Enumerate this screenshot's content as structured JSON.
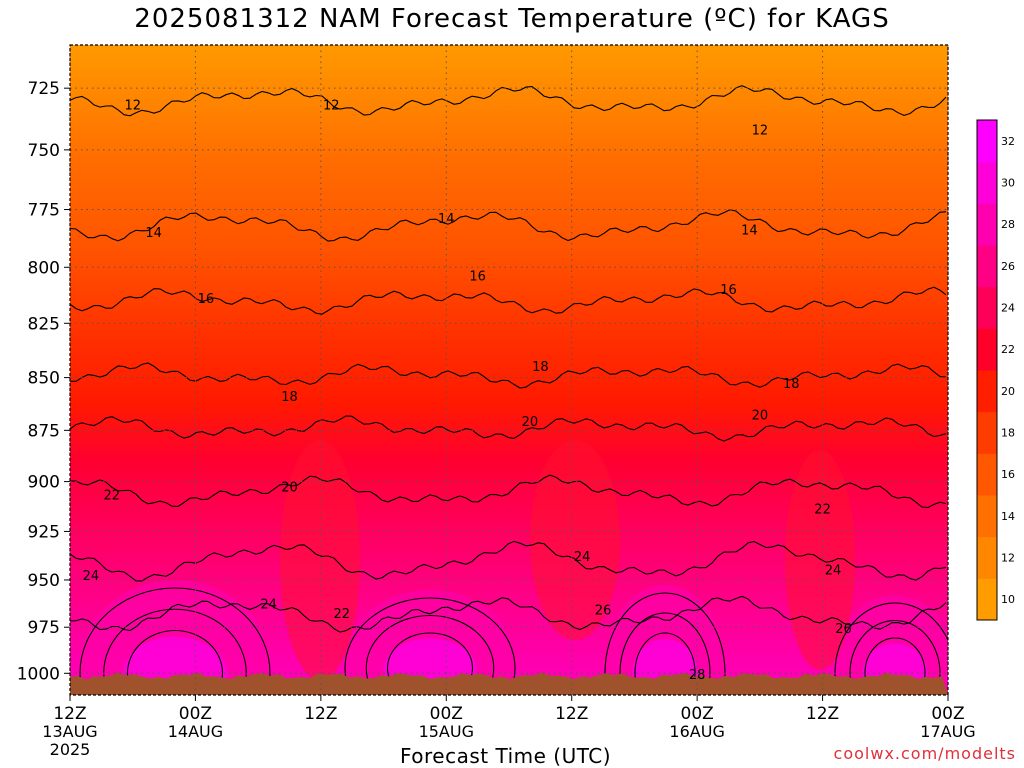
{
  "title": "2025081312 NAM Forecast Temperature (ºC) for KAGS",
  "xlabel": "Forecast Time (UTC)",
  "credit": "coolwx.com/modelts",
  "chart_data": {
    "type": "heatmap",
    "x_ticks": [
      {
        "line1": "12Z",
        "line2": "13AUG",
        "line3": "2025"
      },
      {
        "line1": "00Z",
        "line2": "14AUG",
        "line3": ""
      },
      {
        "line1": "12Z",
        "line2": "",
        "line3": ""
      },
      {
        "line1": "00Z",
        "line2": "15AUG",
        "line3": ""
      },
      {
        "line1": "12Z",
        "line2": "",
        "line3": ""
      },
      {
        "line1": "00Z",
        "line2": "16AUG",
        "line3": ""
      },
      {
        "line1": "12Z",
        "line2": "",
        "line3": ""
      },
      {
        "line1": "00Z",
        "line2": "17AUG",
        "line3": ""
      }
    ],
    "xlim_hours": [
      0,
      84
    ],
    "y_ticks": [
      725,
      750,
      775,
      800,
      825,
      850,
      875,
      900,
      925,
      950,
      975,
      1000
    ],
    "ylim_hpa": [
      1012,
      708
    ],
    "y_scale": "log",
    "grid": true,
    "colorbar_ticks": [
      10,
      12,
      14,
      16,
      18,
      20,
      22,
      24,
      26,
      28,
      30,
      32
    ],
    "colorbar_colors": [
      "#ff9d00",
      "#ff8700",
      "#ff7000",
      "#ff5800",
      "#ff3c00",
      "#ff1e00",
      "#ff0028",
      "#ff0058",
      "#ff0084",
      "#ff00b0",
      "#ff00d8",
      "#ff00ff"
    ],
    "contour_levels": [
      12,
      14,
      16,
      18,
      20,
      22,
      24,
      26,
      28
    ],
    "contour_labels": [
      {
        "value": "12",
        "x": 6,
        "p": 732
      },
      {
        "value": "12",
        "x": 25,
        "p": 732
      },
      {
        "value": "12",
        "x": 66,
        "p": 742
      },
      {
        "value": "14",
        "x": 8,
        "p": 785
      },
      {
        "value": "14",
        "x": 36,
        "p": 779
      },
      {
        "value": "14",
        "x": 65,
        "p": 784
      },
      {
        "value": "16",
        "x": 13,
        "p": 814
      },
      {
        "value": "16",
        "x": 39,
        "p": 804
      },
      {
        "value": "16",
        "x": 63,
        "p": 810
      },
      {
        "value": "18",
        "x": 21,
        "p": 859
      },
      {
        "value": "18",
        "x": 45,
        "p": 845
      },
      {
        "value": "18",
        "x": 69,
        "p": 853
      },
      {
        "value": "20",
        "x": 21,
        "p": 903
      },
      {
        "value": "20",
        "x": 44,
        "p": 871
      },
      {
        "value": "20",
        "x": 66,
        "p": 868
      },
      {
        "value": "22",
        "x": 4,
        "p": 907
      },
      {
        "value": "22",
        "x": 26,
        "p": 968
      },
      {
        "value": "22",
        "x": 72,
        "p": 914
      },
      {
        "value": "24",
        "x": 2,
        "p": 948
      },
      {
        "value": "24",
        "x": 19,
        "p": 963
      },
      {
        "value": "24",
        "x": 49,
        "p": 938
      },
      {
        "value": "24",
        "x": 73,
        "p": 945
      },
      {
        "value": "26",
        "x": 51,
        "p": 966
      },
      {
        "value": "26",
        "x": 74,
        "p": 976
      },
      {
        "value": "28",
        "x": 60,
        "p": 1001
      }
    ]
  },
  "colors": {
    "ground": "#a0522d",
    "contour": "#000000",
    "grid": "#555555",
    "credit": "#e0303a"
  }
}
